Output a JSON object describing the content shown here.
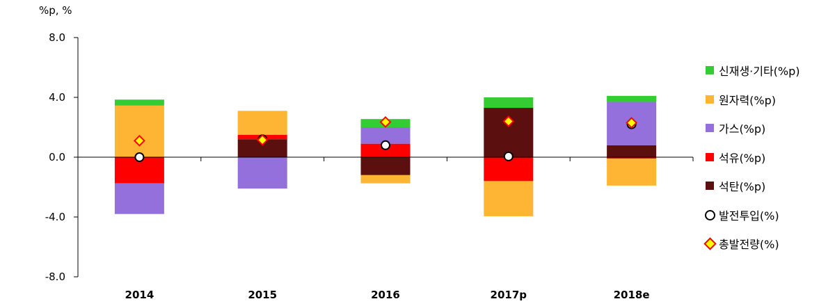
{
  "unit_label": "%p, %",
  "chart_data": {
    "type": "bar",
    "stacked": true,
    "categories": [
      "2014",
      "2015",
      "2016",
      "2017p",
      "2018e"
    ],
    "ylim": [
      -8.0,
      8.0
    ],
    "yticks": [
      "8.0",
      "4.0",
      "0.0",
      "-4.0",
      "-8.0"
    ],
    "ytick_values": [
      8,
      4,
      0,
      -4,
      -8
    ],
    "series": [
      {
        "name": "석탄(%p)",
        "color": "#5B0F0F",
        "values": [
          0.0,
          1.2,
          -1.2,
          3.3,
          0.8
        ]
      },
      {
        "name": "석유(%p)",
        "color": "#FF0000",
        "values": [
          -1.75,
          0.3,
          0.9,
          -1.6,
          -0.1
        ]
      },
      {
        "name": "가스(%p)",
        "color": "#9370DB",
        "values": [
          -2.05,
          -2.1,
          1.1,
          0.0,
          2.9
        ]
      },
      {
        "name": "원자력(%p)",
        "color": "#FDB533",
        "values": [
          3.45,
          1.6,
          -0.55,
          -2.35,
          -1.8
        ]
      },
      {
        "name": "신재생·기타(%p)",
        "color": "#33CC33",
        "values": [
          0.4,
          0.0,
          0.55,
          0.7,
          0.4
        ]
      }
    ],
    "markers": [
      {
        "name": "발전투입(%)",
        "symbol": "circle",
        "values": [
          0.0,
          1.2,
          0.8,
          0.05,
          2.2
        ]
      },
      {
        "name": "총발전량(%)",
        "symbol": "diamond",
        "values": [
          1.1,
          1.15,
          2.35,
          2.4,
          2.3
        ]
      }
    ],
    "legend_order": [
      "신재생·기타(%p)",
      "원자력(%p)",
      "가스(%p)",
      "석유(%p)",
      "석탄(%p)",
      "발전투입(%)",
      "총발전량(%)"
    ],
    "legend_position": "right",
    "grid": false
  }
}
